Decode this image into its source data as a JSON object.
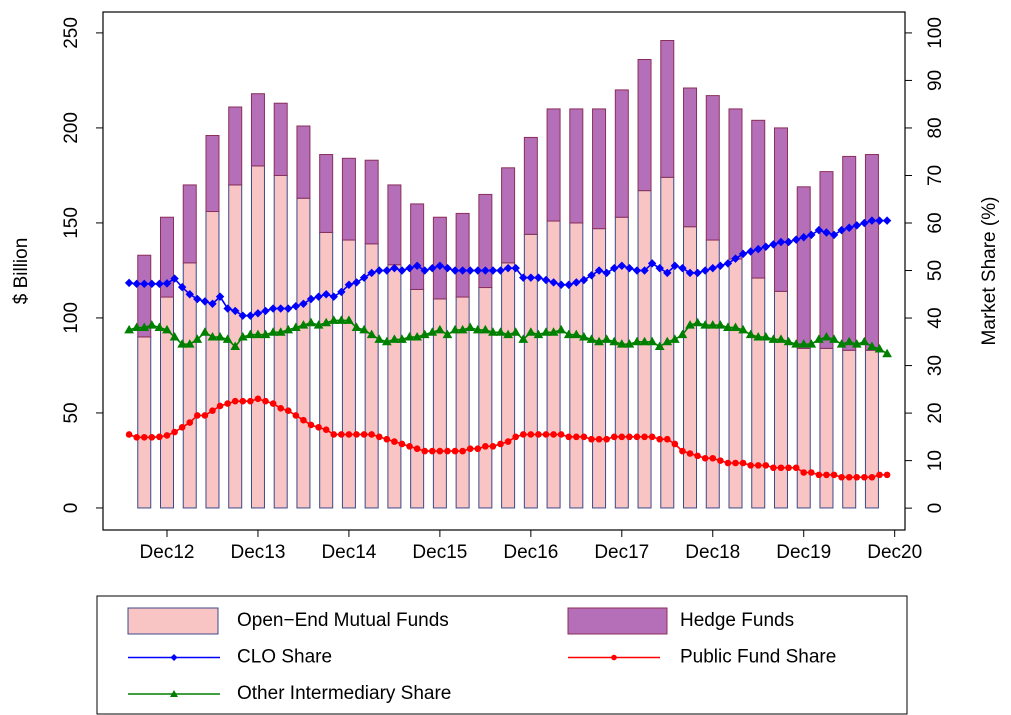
{
  "chart_data": {
    "type": "bar",
    "ylabel": "$ Billion",
    "y2label": "Market Share (%)",
    "ylim": [
      -11.6,
      261
    ],
    "yticks": [
      0,
      50,
      100,
      150,
      200,
      250
    ],
    "y2lim": [
      -4.6,
      104.4
    ],
    "y2ticks": [
      0,
      10,
      20,
      30,
      40,
      50,
      60,
      70,
      80,
      90,
      100
    ],
    "xticks": [
      "Dec12",
      "Dec13",
      "Dec14",
      "Dec15",
      "Dec16",
      "Dec17",
      "Dec18",
      "Dec19",
      "Dec20"
    ],
    "categories": [
      "Sep12",
      "Dec12",
      "Mar13",
      "Jun13",
      "Sep13",
      "Dec13",
      "Mar14",
      "Jun14",
      "Sep14",
      "Dec14",
      "Mar15",
      "Jun15",
      "Sep15",
      "Dec15",
      "Mar16",
      "Jun16",
      "Sep16",
      "Dec16",
      "Mar17",
      "Jun17",
      "Sep17",
      "Dec17",
      "Mar18",
      "Jun18",
      "Sep18",
      "Dec18",
      "Mar19",
      "Jun19",
      "Sep19",
      "Dec19",
      "Mar20",
      "Jun20",
      "Sep20"
    ],
    "x": [
      "Jul12",
      "Aug12",
      "Sep12",
      "Oct12",
      "Nov12",
      "Dec12",
      "Jan13",
      "Feb13",
      "Mar13",
      "Apr13",
      "May13",
      "Jun13",
      "Jul13",
      "Aug13",
      "Sep13",
      "Oct13",
      "Nov13",
      "Dec13",
      "Jan14",
      "Feb14",
      "Mar14",
      "Apr14",
      "May14",
      "Jun14",
      "Jul14",
      "Aug14",
      "Sep14",
      "Oct14",
      "Nov14",
      "Dec14",
      "Jan15",
      "Feb15",
      "Mar15",
      "Apr15",
      "May15",
      "Jun15",
      "Jul15",
      "Aug15",
      "Sep15",
      "Oct15",
      "Nov15",
      "Dec15",
      "Jan16",
      "Feb16",
      "Mar16",
      "Apr16",
      "May16",
      "Jun16",
      "Jul16",
      "Aug16",
      "Sep16",
      "Oct16",
      "Nov16",
      "Dec16",
      "Jan17",
      "Feb17",
      "Mar17",
      "Apr17",
      "May17",
      "Jun17",
      "Jul17",
      "Aug17",
      "Sep17",
      "Oct17",
      "Nov17",
      "Dec17",
      "Jan18",
      "Feb18",
      "Mar18",
      "Apr18",
      "May18",
      "Jun18",
      "Jul18",
      "Aug18",
      "Sep18",
      "Oct18",
      "Nov18",
      "Dec18",
      "Jan19",
      "Feb19",
      "Mar19",
      "Apr19",
      "May19",
      "Jun19",
      "Jul19",
      "Aug19",
      "Sep19",
      "Oct19",
      "Nov19",
      "Dec19",
      "Jan20",
      "Feb20",
      "Mar20",
      "Apr20",
      "May20",
      "Jun20",
      "Jul20",
      "Aug20",
      "Sep20",
      "Oct20",
      "Nov20"
    ],
    "series": [
      {
        "name": "Open−End Mutual Funds",
        "type": "bar",
        "color": "#f9c4c4",
        "edgecolor": "#3b4a8a",
        "values": [
          90,
          111,
          129,
          156,
          170,
          180,
          175,
          163,
          145,
          141,
          139,
          128,
          115,
          110,
          111,
          116,
          129,
          144,
          151,
          150,
          147,
          153,
          167,
          174,
          148,
          141,
          131,
          121,
          114,
          84,
          84,
          83,
          83
        ]
      },
      {
        "name": "Hedge Funds",
        "type": "bar",
        "color": "#b56fb8",
        "edgecolor": "#8a2f5a",
        "values": [
          43,
          42,
          41,
          40,
          41,
          38,
          38,
          38,
          41,
          43,
          44,
          42,
          45,
          43,
          44,
          49,
          50,
          51,
          59,
          60,
          63,
          67,
          69,
          72,
          73,
          76,
          79,
          83,
          86,
          85,
          93,
          102,
          103
        ]
      },
      {
        "name": "CLO Share",
        "type": "line",
        "axis": "y2",
        "color": "#0000ff",
        "marker": "diamond",
        "values": [
          47.4,
          47.2,
          47.2,
          47.2,
          47.2,
          47.3,
          48.3,
          46.5,
          45,
          44,
          43.5,
          43,
          44.5,
          42,
          41.5,
          40.5,
          40.5,
          41,
          41.5,
          42,
          42,
          42,
          42.5,
          43,
          44,
          44.5,
          45,
          44.5,
          45.5,
          47,
          47.5,
          48.5,
          49.5,
          50,
          50,
          50.5,
          50,
          50.5,
          51,
          50,
          50.5,
          51,
          50.5,
          50,
          50,
          50,
          50,
          50,
          50,
          50,
          50.5,
          50.5,
          48.5,
          48.5,
          48.5,
          48,
          47.5,
          47,
          47,
          47.5,
          48,
          49,
          50,
          49.5,
          50.5,
          51,
          50.5,
          50,
          50,
          51.5,
          50.5,
          49.5,
          51,
          50.5,
          49.5,
          49.5,
          50,
          50.5,
          51,
          51.5,
          52.5,
          53.5,
          54,
          54.5,
          55,
          55.5,
          56,
          56,
          56.5,
          57,
          57.5,
          58.5,
          58,
          57.5,
          58.5,
          59,
          59.5,
          60,
          60.5,
          60.5,
          60.5
        ]
      },
      {
        "name": "Public Fund Share",
        "type": "line",
        "axis": "y2",
        "color": "#ff0000",
        "marker": "circle",
        "values": [
          15.5,
          14.9,
          14.9,
          14.9,
          15,
          15.3,
          16,
          17,
          18,
          19.5,
          19.5,
          20.5,
          21.5,
          22,
          22.5,
          22.5,
          22.5,
          23,
          22.5,
          22,
          21,
          20.5,
          19.5,
          18.5,
          17.5,
          17,
          16.5,
          15.5,
          15.5,
          15.5,
          15.5,
          15.5,
          15.5,
          15,
          14.5,
          14,
          13.5,
          13,
          12.5,
          12,
          12,
          12,
          12,
          12,
          12,
          12.5,
          12.5,
          13,
          13,
          13.5,
          14,
          15,
          15.5,
          15.5,
          15.5,
          15.5,
          15.5,
          15.5,
          15,
          15,
          15,
          14.5,
          14.5,
          14.5,
          15,
          15,
          15,
          15,
          15,
          15,
          14.5,
          14.5,
          13.5,
          12,
          11.5,
          11,
          10.5,
          10.5,
          10,
          9.5,
          9.5,
          9.5,
          9,
          9,
          9,
          8.5,
          8.5,
          8.5,
          8.5,
          7.5,
          7.5,
          7,
          7,
          7,
          6.5,
          6.5,
          6.5,
          6.5,
          6.5,
          7,
          7
        ]
      },
      {
        "name": "Other Intermediary Share",
        "type": "line",
        "axis": "y2",
        "color": "#008000",
        "marker": "triangle",
        "values": [
          37.5,
          38,
          38,
          38.5,
          38,
          37.5,
          36,
          34.5,
          34.5,
          35.5,
          37,
          36,
          36,
          35.5,
          34,
          36,
          36.5,
          36.5,
          36.5,
          37,
          37,
          37.5,
          38,
          38.5,
          39,
          38.5,
          39,
          39.5,
          39.5,
          39.5,
          38,
          37.5,
          36.5,
          35.5,
          35,
          35.5,
          35.5,
          36,
          36,
          36.5,
          37,
          37.5,
          36.5,
          37.5,
          37.5,
          38,
          37.5,
          37.5,
          37,
          37,
          36.5,
          37,
          35.5,
          37,
          36.5,
          37,
          37,
          37.5,
          36.5,
          36.5,
          36,
          35.5,
          35,
          35.5,
          35,
          34.5,
          34.5,
          35,
          35,
          35,
          34,
          35,
          35.5,
          36.5,
          38.5,
          39,
          38.5,
          38.5,
          38.5,
          38,
          38,
          37.5,
          36.5,
          36,
          36,
          35.5,
          35.5,
          35,
          34.5,
          34.5,
          34.5,
          35.5,
          36,
          35.5,
          34.5,
          35,
          34.5,
          35,
          34,
          33.5,
          32.5
        ]
      }
    ]
  }
}
